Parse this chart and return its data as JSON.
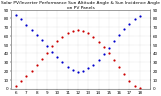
{
  "title": "Solar PV/Inverter Performance Sun Altitude Angle & Sun Incidence Angle on PV Panels",
  "background_color": "#ffffff",
  "plot_bg_color": "#ffffff",
  "grid_color": "#aaaaaa",
  "title_color": "#000000",
  "tick_color": "#000000",
  "series": [
    {
      "label": "Sun Altitude Angle",
      "color": "#cc0000",
      "x": [
        6.0,
        6.5,
        7.0,
        7.5,
        8.0,
        8.5,
        9.0,
        9.5,
        10.0,
        10.5,
        11.0,
        11.5,
        12.0,
        12.5,
        13.0,
        13.5,
        14.0,
        14.5,
        15.0,
        15.5,
        16.0,
        16.5,
        17.0,
        17.5,
        18.0
      ],
      "y": [
        3,
        8,
        14,
        20,
        27,
        34,
        41,
        48,
        54,
        59,
        63,
        66,
        67,
        66,
        63,
        59,
        53,
        47,
        40,
        32,
        24,
        16,
        9,
        3,
        1
      ]
    },
    {
      "label": "Sun Incidence Angle",
      "color": "#0000cc",
      "x": [
        6.0,
        6.5,
        7.0,
        7.5,
        8.0,
        8.5,
        9.0,
        9.5,
        10.0,
        10.5,
        11.0,
        11.5,
        12.0,
        12.5,
        13.0,
        13.5,
        14.0,
        14.5,
        15.0,
        15.5,
        16.0,
        16.5,
        17.0,
        17.5,
        18.0
      ],
      "y": [
        84,
        79,
        73,
        67,
        61,
        55,
        48,
        42,
        36,
        30,
        25,
        21,
        19,
        20,
        23,
        27,
        33,
        39,
        46,
        54,
        61,
        68,
        74,
        79,
        83
      ]
    }
  ],
  "xlim": [
    5.5,
    19.0
  ],
  "ylim": [
    0,
    90
  ],
  "xtick_positions": [
    6,
    7,
    8,
    9,
    10,
    11,
    12,
    13,
    14,
    15,
    16,
    17,
    18
  ],
  "xtick_labels": [
    "6",
    "7",
    "8",
    "9",
    "10",
    "11",
    "12",
    "13",
    "14",
    "15",
    "16",
    "17",
    "18"
  ],
  "ytick_positions": [
    0,
    10,
    20,
    30,
    40,
    50,
    60,
    70,
    80,
    90
  ],
  "ytick_labels": [
    "0",
    "10",
    "20",
    "30",
    "40",
    "50",
    "60",
    "70",
    "80",
    "90"
  ],
  "marker_size": 2.5,
  "tick_fontsize": 3.0,
  "title_fontsize": 3.2,
  "spine_color": "#888888"
}
